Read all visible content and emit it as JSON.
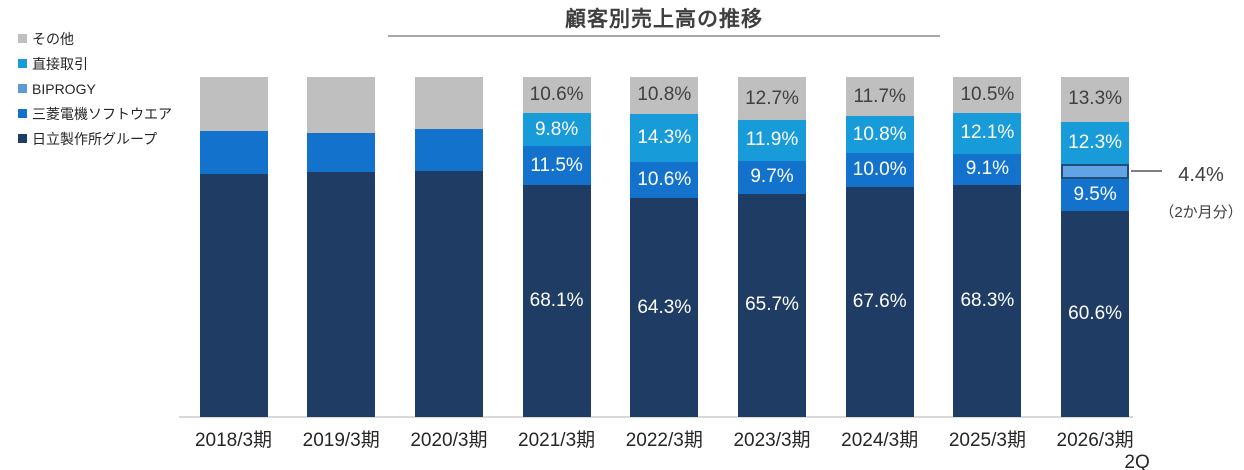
{
  "title": "顧客別売上高の推移",
  "legend": {
    "items": [
      {
        "label": "その他",
        "color": "#BFBFBF"
      },
      {
        "label": "直接取引",
        "color": "#189BD9"
      },
      {
        "label": "BIPROGY",
        "color": "#5B9BD5"
      },
      {
        "label": "三菱電機ソフトウエア",
        "color": "#1272CC"
      },
      {
        "label": "日立製作所グループ",
        "color": "#1F3C64"
      }
    ]
  },
  "annotation": {
    "value": "4.4%",
    "note": "（2か月分）"
  },
  "chart_data": {
    "type": "bar",
    "subtype": "100-percent-stacked-column",
    "title": "顧客別売上高の推移",
    "ylim": [
      0,
      100
    ],
    "grid": false,
    "legend_position": "top-left",
    "categories": [
      "2018/3期",
      "2019/3期",
      "2020/3期",
      "2021/3期",
      "2022/3期",
      "2023/3期",
      "2024/3期",
      "2025/3期",
      "2026/3期"
    ],
    "category_line2": [
      "",
      "",
      "",
      "",
      "",
      "",
      "",
      "",
      "2Q"
    ],
    "series_bottom_to_top": [
      {
        "name": "日立製作所グループ",
        "color": "#1F3C64",
        "label_color": "#FFFFFF",
        "values": [
          71.6,
          72.2,
          72.3,
          68.1,
          64.3,
          65.7,
          67.6,
          68.3,
          60.6
        ],
        "labels": [
          null,
          null,
          null,
          "68.1%",
          "64.3%",
          "65.7%",
          "67.6%",
          "68.3%",
          "60.6%"
        ]
      },
      {
        "name": "三菱電機ソフトウエア",
        "color": "#1272CC",
        "label_color": "#FFFFFF",
        "values": [
          12.4,
          11.2,
          12.4,
          11.5,
          10.6,
          9.7,
          10.0,
          9.1,
          9.5
        ],
        "labels": [
          null,
          null,
          null,
          "11.5%",
          "10.6%",
          "9.7%",
          "10.0%",
          "9.1%",
          "9.5%"
        ]
      },
      {
        "name": "BIPROGY",
        "color": "#61A3E4",
        "border": "#1F4E79",
        "label_color": "#404040",
        "values": [
          0,
          0,
          0,
          0,
          0,
          0,
          0,
          0,
          4.4
        ],
        "labels": [
          null,
          null,
          null,
          null,
          null,
          null,
          null,
          null,
          null
        ]
      },
      {
        "name": "直接取引",
        "color": "#189BD9",
        "label_color": "#FFFFFF",
        "values": [
          0,
          0,
          0,
          9.8,
          14.3,
          11.9,
          10.8,
          12.1,
          12.3
        ],
        "labels": [
          null,
          null,
          null,
          "9.8%",
          "14.3%",
          "11.9%",
          "10.8%",
          "12.1%",
          "12.3%"
        ]
      },
      {
        "name": "その他",
        "color": "#BFBFBF",
        "label_color": "#404040",
        "values": [
          16.0,
          16.6,
          15.3,
          10.6,
          10.8,
          12.7,
          11.7,
          10.5,
          13.3
        ],
        "labels": [
          null,
          null,
          null,
          "10.6%",
          "10.8%",
          "12.7%",
          "11.7%",
          "10.5%",
          "13.3%"
        ]
      }
    ],
    "annotation": {
      "series": "BIPROGY",
      "category": "2026/3期 2Q",
      "value_label": "4.4%",
      "note": "（2か月分）"
    }
  }
}
